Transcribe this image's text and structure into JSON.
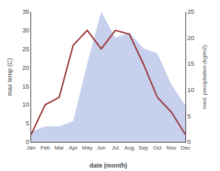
{
  "chart_data": {
    "type": "line",
    "xlabel": "date (month)",
    "ylabel": "max temp (C)",
    "y2label": "med. precipitation (kg/m2)",
    "categories": [
      "Jan",
      "Feb",
      "Mar",
      "Apr",
      "May",
      "Jun",
      "Jul",
      "Aug",
      "Sep",
      "Oct",
      "Nov",
      "Dec"
    ],
    "series": [
      {
        "type": "area",
        "axis": "y2",
        "color": "#99aadd",
        "values": [
          2,
          3,
          3,
          4,
          15,
          25,
          20,
          21,
          18,
          17,
          11,
          7
        ]
      },
      {
        "type": "line",
        "color": "#993333",
        "values": [
          2,
          10,
          12,
          26,
          30,
          25,
          30,
          29,
          21,
          12,
          8,
          2
        ]
      }
    ],
    "ylim": [
      0,
      35
    ],
    "yticks": [
      0,
      5,
      10,
      15,
      20,
      25,
      30,
      35
    ],
    "y2lim": [
      0,
      25
    ],
    "y2ticks": [
      0,
      5,
      10,
      15,
      20,
      25
    ],
    "grid": false
  }
}
